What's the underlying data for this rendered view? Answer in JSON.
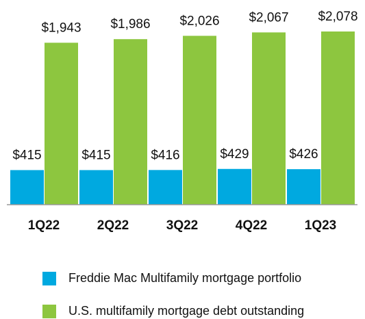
{
  "chart_data": {
    "type": "bar",
    "categories": [
      "1Q22",
      "2Q22",
      "3Q22",
      "4Q22",
      "1Q23"
    ],
    "series": [
      {
        "name": "Freddie Mac Multifamily mortgage portfolio",
        "color": "#00a9e0",
        "values": [
          415,
          415,
          416,
          429,
          426
        ],
        "value_labels": [
          "$415",
          "$415",
          "$416",
          "$429",
          "$426"
        ]
      },
      {
        "name": "U.S. multifamily mortgage debt outstanding",
        "color": "#8dc63f",
        "values": [
          1943,
          1986,
          2026,
          2067,
          2078
        ],
        "value_labels": [
          "$1,943",
          "$1,986",
          "$2,026",
          "$2,067",
          "$2,078"
        ]
      }
    ]
  }
}
